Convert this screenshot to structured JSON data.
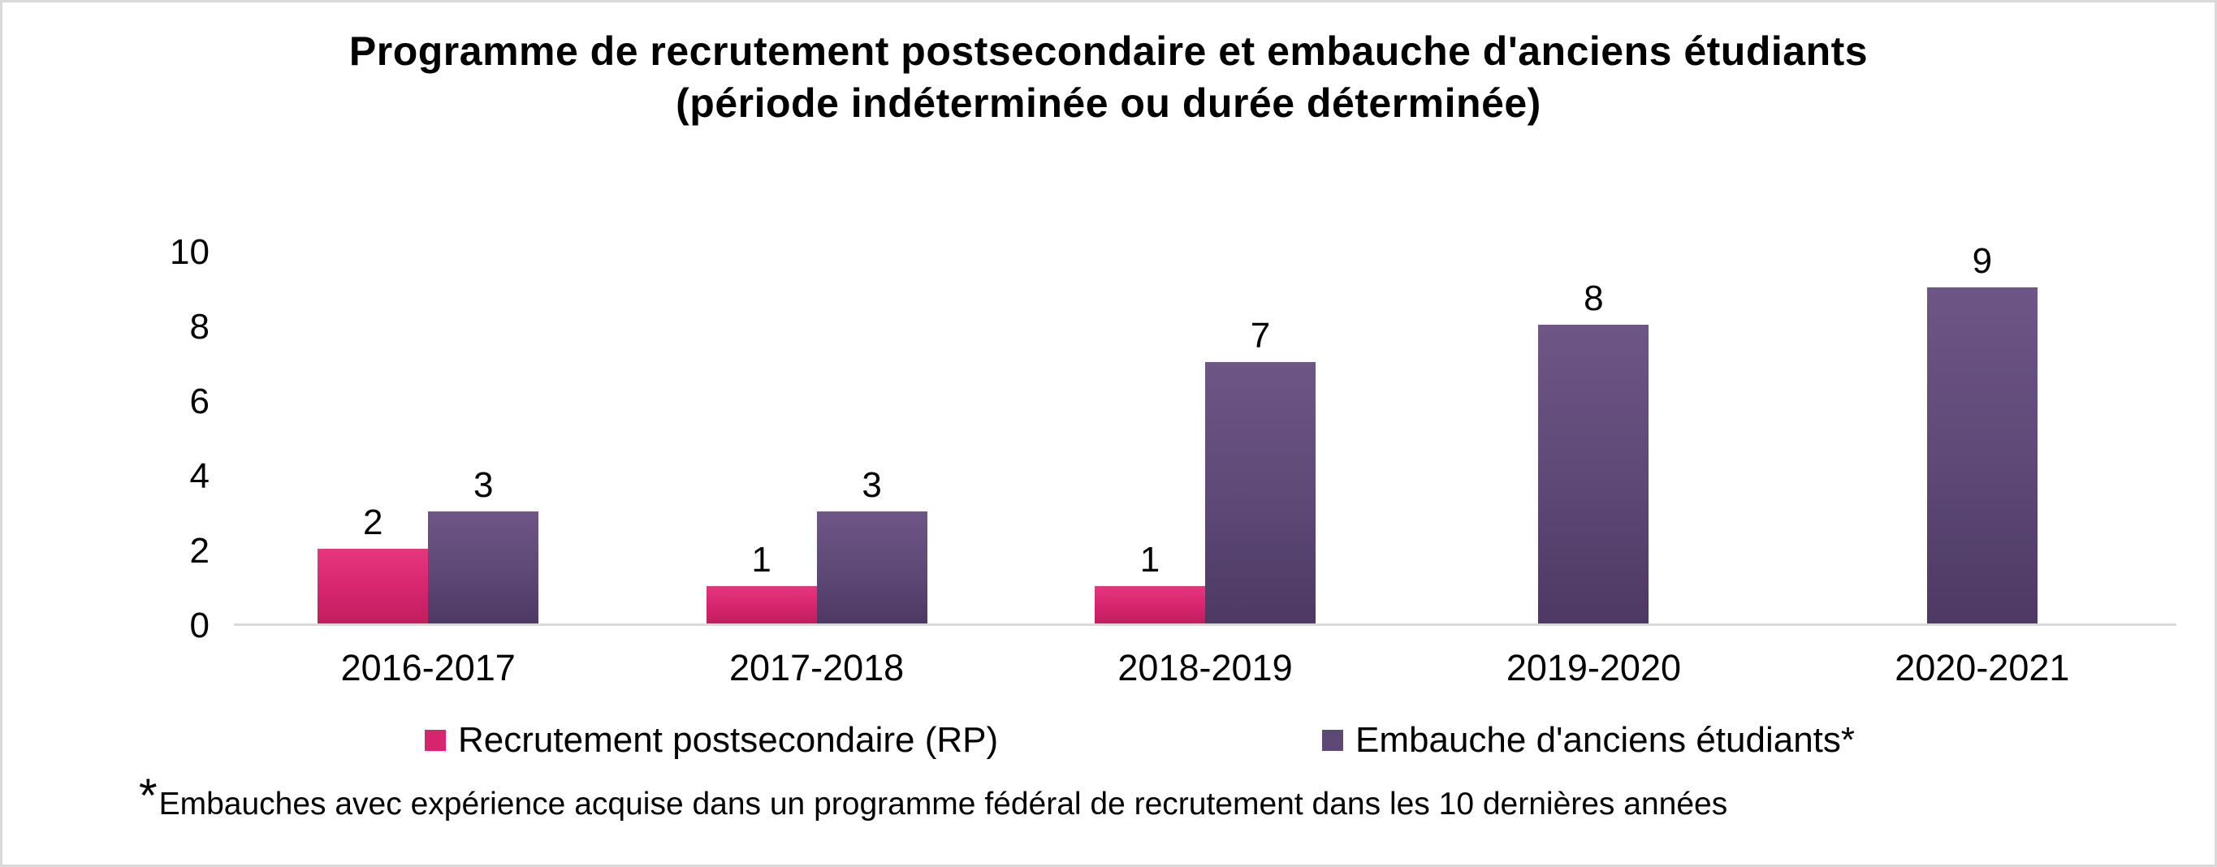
{
  "chart_data": {
    "type": "bar",
    "title": "Programme de recrutement postsecondaire et embauche d'anciens étudiants\n(période indéterminée ou durée déterminée)",
    "categories": [
      "2016-2017",
      "2017-2018",
      "2018-2019",
      "2019-2020",
      "2020-2021"
    ],
    "series": [
      {
        "key": "recrutement-postsecondaire",
        "name": "Recrutement postsecondaire (RP)",
        "color": "#D6256D",
        "color_top": "#E5367E",
        "color_bottom": "#C11E5F",
        "values": [
          2,
          1,
          1,
          0,
          0
        ]
      },
      {
        "key": "embauche-anciens-etudiants",
        "name": "Embauche d'anciens étudiants*",
        "color": "#5D4876",
        "color_top": "#6E5686",
        "color_bottom": "#4D3963",
        "values": [
          3,
          3,
          7,
          8,
          9
        ]
      }
    ],
    "ylim": [
      0,
      10
    ],
    "yticks": [
      0,
      2,
      4,
      6,
      8,
      10
    ],
    "xlabel": "",
    "ylabel": "",
    "grid": false,
    "data_labels": true,
    "legend_position": "bottom",
    "colors": {
      "axis_line": "#D9D9D9",
      "frame_border": "#D9D9D9",
      "text": "#000000",
      "background": "#FFFFFF"
    }
  },
  "footnote": {
    "star": "*",
    "text": "Embauches avec expérience acquise dans un programme fédéral de recrutement dans les 10 dernières années"
  }
}
